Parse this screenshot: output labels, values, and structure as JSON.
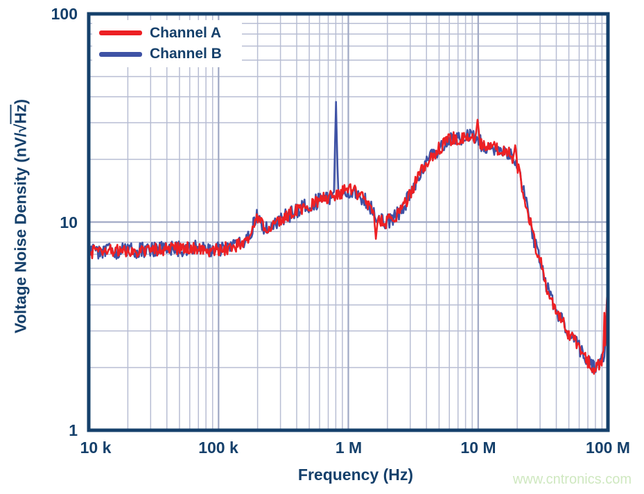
{
  "page": {
    "watermark": "www.cntronics.com",
    "watermark_color": "#cfe8c0"
  },
  "chart_data": {
    "type": "line",
    "title": "",
    "xlabel": "Frequency (Hz)",
    "ylabel": "Voltage Noise Density (nV/√Hz)",
    "ylabel_parts": {
      "prefix": "Voltage Noise Density (nV/√",
      "overline": "Hz",
      "suffix": ")"
    },
    "x_scale": "log",
    "y_scale": "log",
    "xlim": [
      10000,
      100000000
    ],
    "ylim": [
      1,
      100
    ],
    "grid": "log-minor-and-major",
    "x_ticks": [
      {
        "value": 10000,
        "label": "10 k"
      },
      {
        "value": 100000,
        "label": "100 k"
      },
      {
        "value": 1000000,
        "label": "1 M"
      },
      {
        "value": 10000000,
        "label": "10 M"
      },
      {
        "value": 100000000,
        "label": "100 M"
      }
    ],
    "y_ticks": [
      {
        "value": 100,
        "label": "100"
      },
      {
        "value": 10,
        "label": "10"
      },
      {
        "value": 1,
        "label": "1"
      }
    ],
    "legend": {
      "position": "top-left",
      "entries": [
        {
          "label": "Channel A",
          "color": "#ed2024"
        },
        {
          "label": "Channel B",
          "color": "#3e52a5"
        }
      ]
    },
    "backbone_points_hz_nv": [
      [
        10000,
        7.2
      ],
      [
        15000,
        7.25
      ],
      [
        22000,
        7.3
      ],
      [
        32000,
        7.35
      ],
      [
        46000,
        7.45
      ],
      [
        65000,
        7.5
      ],
      [
        90000,
        7.3
      ],
      [
        110000,
        7.45
      ],
      [
        130000,
        7.6
      ],
      [
        160000,
        8.0
      ],
      [
        180000,
        9.0
      ],
      [
        196000,
        11.0
      ],
      [
        205000,
        10.2
      ],
      [
        220000,
        9.6
      ],
      [
        245000,
        9.4
      ],
      [
        270000,
        9.8
      ],
      [
        320000,
        10.5
      ],
      [
        370000,
        11.1
      ],
      [
        450000,
        11.7
      ],
      [
        550000,
        12.4
      ],
      [
        700000,
        13.2
      ],
      [
        850000,
        13.8
      ],
      [
        1000000,
        14.3
      ],
      [
        1150000,
        13.9
      ],
      [
        1350000,
        12.7
      ],
      [
        1550000,
        11.2
      ],
      [
        1750000,
        10.2
      ],
      [
        1950000,
        10.0
      ],
      [
        2200000,
        10.4
      ],
      [
        2600000,
        11.6
      ],
      [
        3000000,
        13.6
      ],
      [
        3400000,
        16.3
      ],
      [
        4000000,
        19.3
      ],
      [
        4600000,
        21.5
      ],
      [
        5300000,
        23.3
      ],
      [
        6100000,
        25.0
      ],
      [
        7000000,
        25.3
      ],
      [
        8000000,
        25.6
      ],
      [
        9000000,
        25.6
      ],
      [
        10000000,
        25.4
      ],
      [
        10800000,
        23.0
      ],
      [
        12000000,
        23.4
      ],
      [
        13000000,
        22.9
      ],
      [
        15000000,
        22.3
      ],
      [
        17000000,
        21.4
      ],
      [
        18500000,
        20.5
      ],
      [
        19500000,
        19.9
      ],
      [
        21000000,
        16.8
      ],
      [
        22500000,
        13.6
      ],
      [
        24000000,
        11.5
      ],
      [
        25500000,
        9.6
      ],
      [
        27500000,
        7.8
      ],
      [
        30000000,
        6.6
      ],
      [
        33000000,
        5.1
      ],
      [
        37000000,
        4.2
      ],
      [
        40000000,
        3.85
      ],
      [
        44000000,
        3.35
      ],
      [
        50000000,
        2.9
      ],
      [
        57000000,
        2.6
      ],
      [
        64000000,
        2.35
      ],
      [
        70000000,
        2.15
      ],
      [
        78000000,
        2.0
      ],
      [
        85000000,
        2.05
      ],
      [
        92000000,
        2.2
      ],
      [
        96000000,
        2.5
      ],
      [
        100000000,
        3.2
      ]
    ],
    "series": [
      {
        "name": "Channel A",
        "color": "#ed2024",
        "uses": "backbone_points_hz_nv",
        "spikes_hz_nv": [
          [
            1600000,
            13.4
          ],
          [
            1630000,
            8.3
          ],
          [
            9900000,
            31.0
          ],
          [
            19300000,
            23.4
          ],
          [
            53000000,
            2.95
          ],
          [
            95500000,
            5.8
          ],
          [
            98500000,
            4.4
          ]
        ],
        "noise_amp_log10": 0.032,
        "seed": 7
      },
      {
        "name": "Channel B",
        "color": "#3e52a5",
        "uses": "backbone_points_hz_nv",
        "spikes_hz_nv": [
          [
            790000,
            21.0
          ],
          [
            803000,
            37.8
          ],
          [
            99000000,
            3.5
          ]
        ],
        "noise_amp_log10": 0.038,
        "seed": 13
      }
    ],
    "colors": {
      "frame": "#15406b",
      "grid_minor": "#b7bdd3",
      "grid_major": "#9fa8c4",
      "text": "#15406b",
      "background": "#ffffff"
    }
  }
}
